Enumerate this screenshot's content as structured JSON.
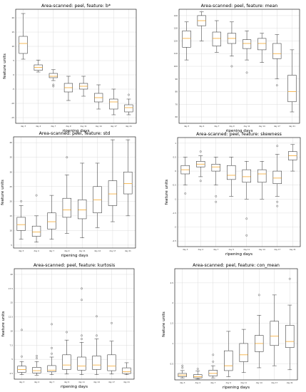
{
  "chart_data": [
    {
      "type": "box",
      "title": "Area-scanned: peel, feature: b*",
      "xlabel": "ripening days",
      "ylabel": "feature units",
      "categories": [
        "day 3",
        "day 4",
        "day 7",
        "day 9",
        "day 11",
        "day 14",
        "day 17",
        "day 21"
      ],
      "yticks": [
        -15,
        -10,
        -5,
        0,
        5,
        10,
        15,
        20
      ],
      "ylim": [
        -17,
        23
      ],
      "grid": true,
      "boxes": [
        {
          "min": 5.5,
          "q1": 7.5,
          "median": 11,
          "q3": 13.5,
          "max": 21.5,
          "outliers": []
        },
        {
          "min": 1,
          "q1": 1.6,
          "median": 2.6,
          "q3": 3.5,
          "max": 5.2,
          "outliers": []
        },
        {
          "min": -2,
          "q1": -1,
          "median": -0.5,
          "q3": 0.5,
          "max": 1.8,
          "outliers": [
            -3.5,
            -4
          ]
        },
        {
          "min": -9,
          "q1": -6,
          "median": -4.5,
          "q3": -3,
          "max": -0.5,
          "outliers": []
        },
        {
          "min": -7.5,
          "q1": -5,
          "median": -4,
          "q3": -3,
          "max": -0.5,
          "outliers": []
        },
        {
          "min": -12,
          "q1": -9.5,
          "median": -8,
          "q3": -6.5,
          "max": -3.5,
          "outliers": []
        },
        {
          "min": -14,
          "q1": -12,
          "median": -9.5,
          "q3": -8.5,
          "max": -5,
          "outliers": []
        },
        {
          "min": -14,
          "q1": -13,
          "median": -11.5,
          "q3": -10.5,
          "max": -8.5,
          "outliers": [
            -7
          ]
        }
      ]
    },
    {
      "type": "box",
      "title": "Area-scanned: peel, feature: mean",
      "xlabel": "ripening days",
      "ylabel": "",
      "categories": [
        "day 3",
        "day 4",
        "day 7",
        "day 9",
        "day 11",
        "day 14",
        "day 17",
        "day 21"
      ],
      "yticks": [
        60,
        70,
        80,
        90,
        100,
        110,
        120,
        130,
        140
      ],
      "ylim": [
        55,
        145
      ],
      "grid": true,
      "boxes": [
        {
          "min": 105,
          "q1": 115,
          "median": 122,
          "q3": 128,
          "max": 135,
          "outliers": []
        },
        {
          "min": 120,
          "q1": 132,
          "median": 136,
          "q3": 140,
          "max": 143,
          "outliers": []
        },
        {
          "min": 111,
          "q1": 116,
          "median": 122,
          "q3": 127,
          "max": 136,
          "outliers": []
        },
        {
          "min": 108,
          "q1": 118,
          "median": 122,
          "q3": 126,
          "max": 135,
          "outliers": [
            100
          ]
        },
        {
          "min": 105,
          "q1": 114,
          "median": 118,
          "q3": 121,
          "max": 128,
          "outliers": [
            95
          ]
        },
        {
          "min": 103,
          "q1": 113,
          "median": 118,
          "q3": 122,
          "max": 126,
          "outliers": []
        },
        {
          "min": 90,
          "q1": 106,
          "median": 110,
          "q3": 118,
          "max": 125,
          "outliers": [
            85
          ]
        },
        {
          "min": 64,
          "q1": 72,
          "median": 80,
          "q3": 93,
          "max": 113,
          "outliers": []
        }
      ]
    },
    {
      "type": "box",
      "title": "Area-scanned: peel, feature: std",
      "xlabel": "ripening days",
      "ylabel": "feature units",
      "categories": [
        "day 3",
        "day 4",
        "day 7",
        "day 9",
        "day 11",
        "day 14",
        "day 17",
        "day 21"
      ],
      "yticks": [
        5,
        10,
        15,
        20,
        25,
        30,
        35,
        40
      ],
      "ylim": [
        4,
        42
      ],
      "grid": true,
      "boxes": [
        {
          "min": 7,
          "q1": 10,
          "median": 12,
          "q3": 14.5,
          "max": 18.5,
          "outliers": [
            20
          ]
        },
        {
          "min": 6,
          "q1": 8,
          "median": 9.5,
          "q3": 11.5,
          "max": 15,
          "outliers": [
            22
          ]
        },
        {
          "min": 7,
          "q1": 10.5,
          "median": 13,
          "q3": 16,
          "max": 22,
          "outliers": []
        },
        {
          "min": 9,
          "q1": 14.5,
          "median": 17,
          "q3": 21,
          "max": 29,
          "outliers": [
            35
          ]
        },
        {
          "min": 7.5,
          "q1": 14,
          "median": 17,
          "q3": 20.5,
          "max": 33,
          "outliers": []
        },
        {
          "min": 11,
          "q1": 16,
          "median": 20.5,
          "q3": 25,
          "max": 33,
          "outliers": []
        },
        {
          "min": 13,
          "q1": 18.5,
          "median": 22.5,
          "q3": 27,
          "max": 41,
          "outliers": []
        },
        {
          "min": 15,
          "q1": 22.5,
          "median": 26,
          "q3": 30,
          "max": 41,
          "outliers": []
        }
      ]
    },
    {
      "type": "box",
      "title": "Area-scanned: peel, feature: skewness",
      "xlabel": "ripening days",
      "ylabel": "feature units",
      "categories": [
        "day 3",
        "day 4",
        "day 7",
        "day 9",
        "day 11",
        "day 14",
        "day 17",
        "day 21"
      ],
      "yticks": [
        -2.5,
        -2.0,
        -1.5,
        -1.0,
        -0.5,
        0.0,
        0.5,
        1.0
      ],
      "ylim": [
        -2.7,
        1.2
      ],
      "grid": true,
      "boxes": [
        {
          "min": -0.5,
          "q1": -0.1,
          "median": 0.05,
          "q3": 0.2,
          "max": 0.5,
          "outliers": [
            -0.8
          ]
        },
        {
          "min": -0.2,
          "q1": 0.15,
          "median": 0.25,
          "q3": 0.35,
          "max": 0.55,
          "outliers": [
            0.7,
            -0.35
          ]
        },
        {
          "min": -0.5,
          "q1": 0.0,
          "median": 0.15,
          "q3": 0.25,
          "max": 0.5,
          "outliers": [
            -0.9,
            -1.1
          ]
        },
        {
          "min": -0.9,
          "q1": -0.3,
          "median": -0.15,
          "q3": 0.2,
          "max": 0.5,
          "outliers": []
        },
        {
          "min": -1.0,
          "q1": -0.4,
          "median": -0.2,
          "q3": 0.05,
          "max": 0.35,
          "outliers": [
            -1.7,
            -2.3
          ]
        },
        {
          "min": -1.0,
          "q1": -0.4,
          "median": -0.1,
          "q3": 0.05,
          "max": 0.35,
          "outliers": []
        },
        {
          "min": -0.9,
          "q1": -0.45,
          "median": -0.25,
          "q3": 0.0,
          "max": 0.6,
          "outliers": [
            0.9,
            -1.1,
            -1.25
          ]
        },
        {
          "min": 0.0,
          "q1": 0.4,
          "median": 0.55,
          "q3": 0.7,
          "max": 0.95,
          "outliers": []
        }
      ]
    },
    {
      "type": "box",
      "title": "Area-scanned: peel, feature: kurtosis",
      "xlabel": "ripening days",
      "ylabel": "feature units",
      "categories": [
        "day 3",
        "day 4",
        "day 7",
        "day 9",
        "day 11",
        "day 14",
        "day 17",
        "day 21"
      ],
      "yticks": [
        2.5,
        5.0,
        7.5,
        10.0,
        12.5,
        15.0,
        17.5,
        20.0
      ],
      "ylim": [
        1.5,
        21
      ],
      "grid": true,
      "boxes": [
        {
          "min": 2.3,
          "q1": 2.7,
          "median": 3.2,
          "q3": 3.8,
          "max": 4.6,
          "outliers": [
            10.2,
            5.5
          ]
        },
        {
          "min": 2.2,
          "q1": 2.6,
          "median": 3.0,
          "q3": 3.6,
          "max": 4.6,
          "outliers": [
            5.6,
            5.2
          ]
        },
        {
          "min": 2.3,
          "q1": 2.8,
          "median": 3.1,
          "q3": 3.9,
          "max": 5.4,
          "outliers": [
            11.2,
            7.0,
            6.0
          ]
        },
        {
          "min": 2.4,
          "q1": 3.2,
          "median": 4.0,
          "q3": 5.8,
          "max": 8.4,
          "outliers": [
            9.8
          ]
        },
        {
          "min": 2.3,
          "q1": 3.1,
          "median": 3.8,
          "q3": 5.4,
          "max": 8.0,
          "outliers": [
            17.5,
            15.5,
            9.2,
            8.6
          ]
        },
        {
          "min": 2.3,
          "q1": 3.2,
          "median": 4.0,
          "q3": 5.6,
          "max": 8.6,
          "outliers": [
            12.6,
            9.2
          ]
        },
        {
          "min": 2.4,
          "q1": 3.0,
          "median": 3.8,
          "q3": 5.8,
          "max": 8.2,
          "outliers": [
            11.4
          ]
        },
        {
          "min": 2.3,
          "q1": 2.5,
          "median": 2.8,
          "q3": 3.5,
          "max": 4.4,
          "outliers": []
        }
      ]
    },
    {
      "type": "box",
      "title": "Area-scanned: peel, feature: con_mean",
      "xlabel": "ripening days",
      "ylabel": "feature units",
      "categories": [
        "day 3",
        "day 4",
        "day 7",
        "day 9",
        "day 11",
        "day 14",
        "day 17",
        "day 21"
      ],
      "yticks": [
        0.5,
        1.0,
        1.5,
        2.0,
        2.5
      ],
      "ylim": [
        0.1,
        2.85
      ],
      "grid": true,
      "boxes": [
        {
          "min": 0.15,
          "q1": 0.18,
          "median": 0.22,
          "q3": 0.26,
          "max": 0.33,
          "outliers": [
            0.4,
            0.45
          ]
        },
        {
          "min": 0.12,
          "q1": 0.15,
          "median": 0.18,
          "q3": 0.23,
          "max": 0.32,
          "outliers": [
            0.37
          ]
        },
        {
          "min": 0.15,
          "q1": 0.2,
          "median": 0.26,
          "q3": 0.34,
          "max": 0.45,
          "outliers": [
            0.55,
            0.72
          ]
        },
        {
          "min": 0.18,
          "q1": 0.33,
          "median": 0.45,
          "q3": 0.82,
          "max": 1.3,
          "outliers": []
        },
        {
          "min": 0.28,
          "q1": 0.55,
          "median": 0.72,
          "q3": 1.0,
          "max": 1.35,
          "outliers": []
        },
        {
          "min": 0.4,
          "q1": 0.8,
          "median": 1.0,
          "q3": 1.2,
          "max": 1.7,
          "outliers": [
            2.2
          ]
        },
        {
          "min": 0.45,
          "q1": 0.95,
          "median": 1.18,
          "q3": 1.55,
          "max": 2.2,
          "outliers": []
        },
        {
          "min": 0.35,
          "q1": 0.9,
          "median": 1.05,
          "q3": 1.45,
          "max": 1.95,
          "outliers": [
            2.6
          ]
        }
      ]
    }
  ]
}
